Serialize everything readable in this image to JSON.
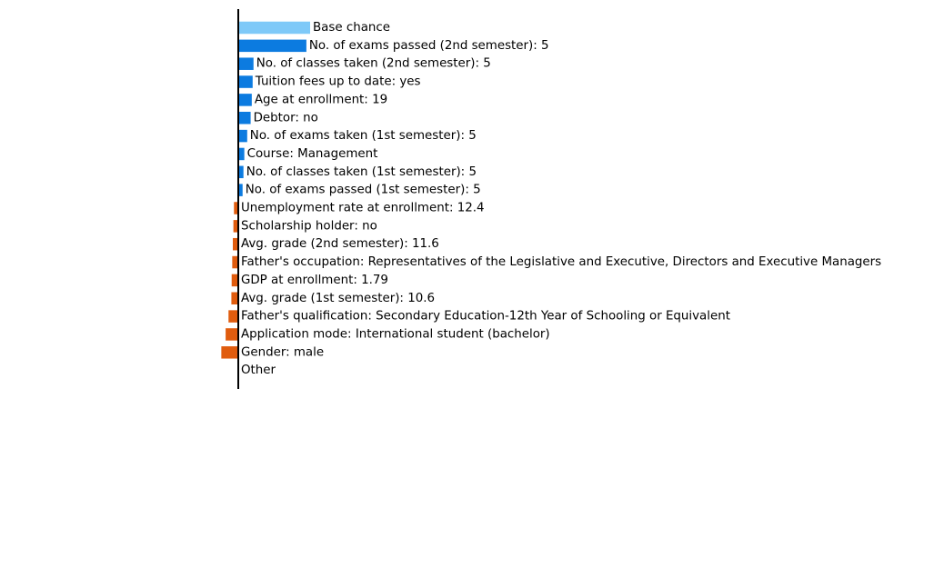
{
  "chart_data": {
    "type": "bar",
    "orientation": "horizontal",
    "axis_visible": false,
    "grid": false,
    "xlim": [
      -0.12,
      0.52
    ],
    "colors": {
      "base": "#7ec9f8",
      "positive": "#0c7be0",
      "negative": "#e05c0e",
      "zero_line": "#000000"
    },
    "categories": [
      "Base chance",
      "No. of exams passed (2nd semester): 5",
      "No. of classes taken (2nd semester): 5",
      "Tuition fees up to date: yes",
      "Age at enrollment: 19",
      "Debtor: no",
      "No. of exams taken (1st semester): 5",
      "Course: Management",
      "No. of classes taken (1st semester): 5",
      "No. of exams passed (1st semester): 5",
      "Unemployment rate at enrollment: 12.4",
      "Scholarship holder: no",
      "Avg. grade (2nd semester): 11.6",
      "Father's occupation: Representatives of the Legislative and Executive, Directors and Executive Managers",
      "GDP at enrollment: 1.79",
      "Avg. grade (1st semester): 10.6",
      "Father's qualification: Secondary Education-12th Year of Schooling or Equivalent",
      "Application mode: International student (bachelor)",
      "Gender: male",
      "Other"
    ],
    "values": [
      0.25,
      0.237,
      0.053,
      0.05,
      0.047,
      0.043,
      0.031,
      0.021,
      0.018,
      0.015,
      -0.015,
      -0.017,
      -0.019,
      -0.021,
      -0.023,
      -0.024,
      -0.034,
      -0.044,
      -0.059,
      0.0
    ]
  }
}
